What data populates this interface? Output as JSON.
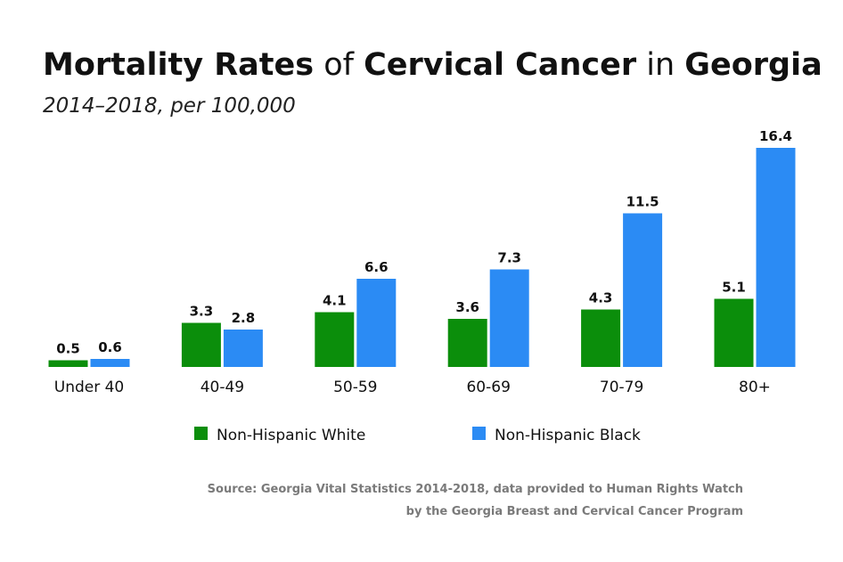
{
  "chart_data": {
    "type": "bar",
    "title_parts": [
      {
        "text": "Mortality Rates",
        "bold": true
      },
      {
        "text": " of ",
        "bold": false
      },
      {
        "text": "Cervical Cancer",
        "bold": true
      },
      {
        "text": " in ",
        "bold": false
      },
      {
        "text": "Georgia",
        "bold": true
      }
    ],
    "subtitle": "2014–2018, per 100,000",
    "categories": [
      "Under 40",
      "40-49",
      "50-59",
      "60-69",
      "70-79",
      "80+"
    ],
    "series": [
      {
        "name": "Non-Hispanic White",
        "color": "#0b8e0b",
        "values": [
          0.5,
          3.3,
          4.1,
          3.6,
          4.3,
          5.1
        ]
      },
      {
        "name": "Non-Hispanic Black",
        "color": "#2b8bf4",
        "values": [
          0.6,
          2.8,
          6.6,
          7.3,
          11.5,
          16.4
        ]
      }
    ],
    "ylim": [
      0,
      16.4
    ],
    "grid": false,
    "legend": "bottom-center",
    "source_lines": [
      "Source: Georgia Vital Statistics 2014-2018, data provided to Human Rights Watch",
      "by the Georgia Breast and Cervical Cancer Program"
    ]
  }
}
